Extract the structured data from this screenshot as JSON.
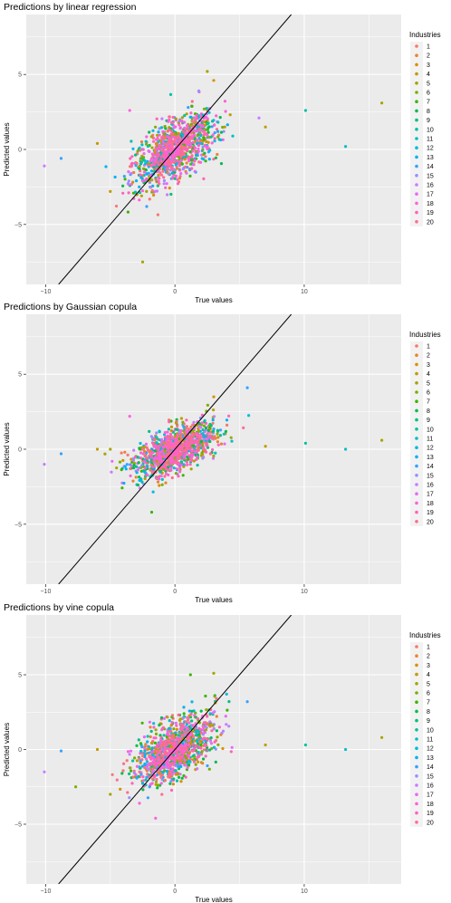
{
  "chart_data": [
    {
      "type": "scatter",
      "title": "Predictions by linear regression",
      "xlabel": "True values",
      "ylabel": "Predicted values",
      "xlim": [
        -11.5,
        17.5
      ],
      "ylim": [
        -9,
        9
      ],
      "xticks": [
        -10,
        0,
        10
      ],
      "yticks": [
        -5,
        0,
        5
      ],
      "grid": true,
      "reference_line": "y = x",
      "legend": {
        "title": "Industries",
        "position": "right",
        "entries": [
          "1",
          "2",
          "3",
          "4",
          "5",
          "6",
          "7",
          "8",
          "9",
          "10",
          "11",
          "12",
          "13",
          "14",
          "15",
          "16",
          "17",
          "18",
          "19",
          "20"
        ]
      },
      "outliers": [
        {
          "x": 16.0,
          "y": 3.1,
          "series": "5"
        },
        {
          "x": 13.2,
          "y": 0.2,
          "series": "11"
        },
        {
          "x": 10.1,
          "y": 2.6,
          "series": "10"
        },
        {
          "x": -10.1,
          "y": -1.1,
          "series": "16"
        },
        {
          "x": -8.8,
          "y": -0.6,
          "series": "14"
        },
        {
          "x": -2.5,
          "y": -7.5,
          "series": "5"
        },
        {
          "x": 6.5,
          "y": 2.1,
          "series": "16"
        },
        {
          "x": 7.0,
          "y": 1.5,
          "series": "4"
        },
        {
          "x": 2.5,
          "y": 5.2,
          "series": "5"
        },
        {
          "x": -6.0,
          "y": 0.4,
          "series": "4"
        },
        {
          "x": -5.0,
          "y": -2.8,
          "series": "4"
        },
        {
          "x": 3.0,
          "y": 4.6,
          "series": "3"
        },
        {
          "x": -3.5,
          "y": 2.6,
          "series": "18"
        }
      ],
      "cloud": {
        "center_x": 0,
        "center_y": 0,
        "spread_x": 1.6,
        "spread_y": 1.0,
        "slope": 0.45
      }
    },
    {
      "type": "scatter",
      "title": "Predictions by Gaussian copula",
      "xlabel": "True values",
      "ylabel": "Predicted values",
      "xlim": [
        -11.5,
        17.5
      ],
      "ylim": [
        -9,
        9
      ],
      "xticks": [
        -10,
        0,
        10
      ],
      "yticks": [
        -5,
        0,
        5
      ],
      "grid": true,
      "reference_line": "y = x",
      "legend": {
        "title": "Industries",
        "position": "right",
        "entries": [
          "1",
          "2",
          "3",
          "4",
          "5",
          "6",
          "7",
          "8",
          "9",
          "10",
          "11",
          "12",
          "13",
          "14",
          "15",
          "16",
          "17",
          "18",
          "19",
          "20"
        ]
      },
      "outliers": [
        {
          "x": 16.0,
          "y": 0.6,
          "series": "5"
        },
        {
          "x": 13.2,
          "y": 0.0,
          "series": "11"
        },
        {
          "x": 10.1,
          "y": 0.4,
          "series": "10"
        },
        {
          "x": -10.1,
          "y": -1.0,
          "series": "16"
        },
        {
          "x": -8.8,
          "y": -0.3,
          "series": "14"
        },
        {
          "x": 5.6,
          "y": 4.1,
          "series": "14"
        },
        {
          "x": -1.8,
          "y": -4.2,
          "series": "7"
        },
        {
          "x": 7.0,
          "y": 0.2,
          "series": "4"
        },
        {
          "x": -6.0,
          "y": 0.0,
          "series": "4"
        },
        {
          "x": -5.0,
          "y": 0.0,
          "series": "5"
        },
        {
          "x": 3.0,
          "y": 3.5,
          "series": "3"
        },
        {
          "x": -3.5,
          "y": 2.2,
          "series": "18"
        }
      ],
      "cloud": {
        "center_x": 0,
        "center_y": 0,
        "spread_x": 1.6,
        "spread_y": 0.75,
        "slope": 0.35
      }
    },
    {
      "type": "scatter",
      "title": "Predictions by vine copula",
      "xlabel": "True values",
      "ylabel": "Predicted values",
      "xlim": [
        -11.5,
        17.5
      ],
      "ylim": [
        -9,
        9
      ],
      "xticks": [
        -10,
        0,
        10
      ],
      "yticks": [
        -5,
        0,
        5
      ],
      "grid": true,
      "reference_line": "y = x",
      "legend": {
        "title": "Industries",
        "position": "right",
        "entries": [
          "1",
          "2",
          "3",
          "4",
          "5",
          "6",
          "7",
          "8",
          "9",
          "10",
          "11",
          "12",
          "13",
          "14",
          "15",
          "16",
          "17",
          "18",
          "19",
          "20"
        ]
      },
      "outliers": [
        {
          "x": 16.0,
          "y": 0.8,
          "series": "5"
        },
        {
          "x": 13.2,
          "y": 0.0,
          "series": "11"
        },
        {
          "x": 10.1,
          "y": 0.3,
          "series": "10"
        },
        {
          "x": -10.1,
          "y": -1.5,
          "series": "16"
        },
        {
          "x": -8.8,
          "y": -0.1,
          "series": "14"
        },
        {
          "x": 3.0,
          "y": 5.1,
          "series": "5"
        },
        {
          "x": 1.2,
          "y": 5.0,
          "series": "7"
        },
        {
          "x": -1.5,
          "y": -4.6,
          "series": "18"
        },
        {
          "x": 7.0,
          "y": 0.3,
          "series": "4"
        },
        {
          "x": -6.0,
          "y": 0.0,
          "series": "4"
        },
        {
          "x": -5.0,
          "y": -3.0,
          "series": "5"
        },
        {
          "x": 5.6,
          "y": 3.2,
          "series": "14"
        }
      ],
      "cloud": {
        "center_x": 0,
        "center_y": 0,
        "spread_x": 1.6,
        "spread_y": 0.95,
        "slope": 0.42
      }
    }
  ],
  "series_colors": [
    "#F8766D",
    "#EA8331",
    "#D89000",
    "#C09B00",
    "#A3A500",
    "#7CAE00",
    "#39B600",
    "#00BB4E",
    "#00BF7D",
    "#00C1A3",
    "#00BFC4",
    "#00BAE0",
    "#00B0F6",
    "#35A2FF",
    "#9590FF",
    "#C77CFF",
    "#E76BF3",
    "#FA62DB",
    "#FF62BC",
    "#FF6C91"
  ]
}
